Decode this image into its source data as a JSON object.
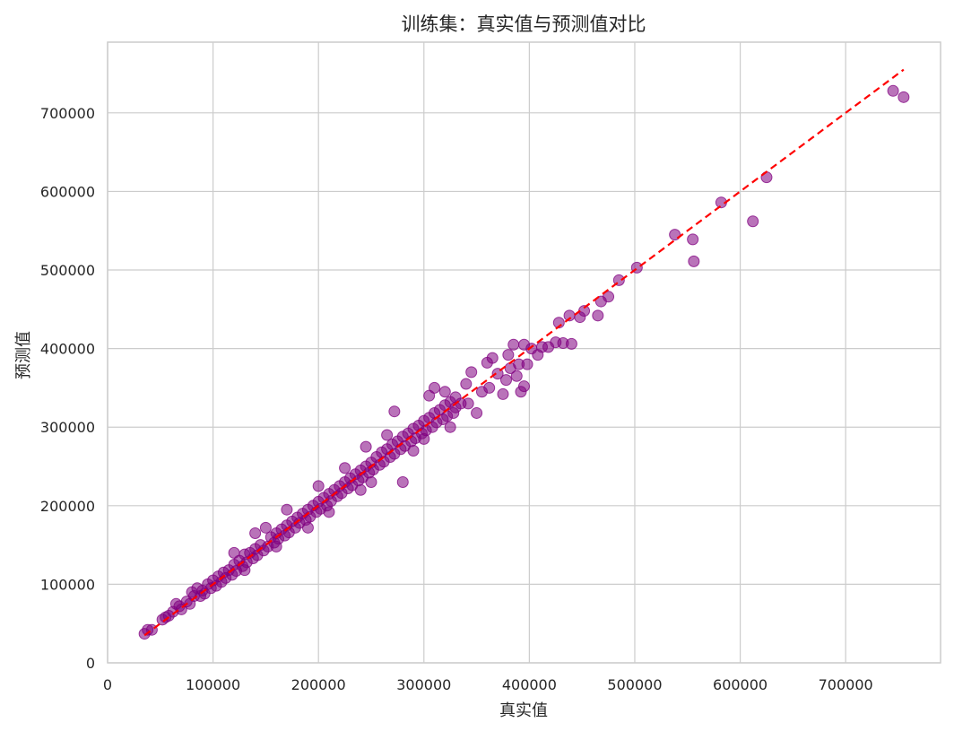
{
  "chart_data": {
    "type": "scatter",
    "title": "训练集：真实值与预测值对比",
    "xlabel": "真实值",
    "ylabel": "预测值",
    "xlim": [
      0,
      790000
    ],
    "ylim": [
      0,
      790000
    ],
    "xticks": [
      0,
      100000,
      200000,
      300000,
      400000,
      500000,
      600000,
      700000
    ],
    "yticks": [
      0,
      100000,
      200000,
      300000,
      400000,
      500000,
      600000,
      700000
    ],
    "grid": true,
    "colors": {
      "points": "#800080",
      "reference_line": "#ff0000",
      "grid": "#cccccc"
    },
    "reference_line": {
      "style": "dashed",
      "x": [
        35000,
        755000
      ],
      "y": [
        35000,
        755000
      ]
    },
    "series": [
      {
        "values": [
          [
            35000,
            37000
          ],
          [
            38000,
            42000
          ],
          [
            42000,
            42000
          ],
          [
            52000,
            55000
          ],
          [
            55000,
            58000
          ],
          [
            58000,
            60000
          ],
          [
            62000,
            65000
          ],
          [
            65000,
            75000
          ],
          [
            68000,
            72000
          ],
          [
            70000,
            68000
          ],
          [
            75000,
            78000
          ],
          [
            78000,
            75000
          ],
          [
            80000,
            90000
          ],
          [
            82000,
            85000
          ],
          [
            85000,
            95000
          ],
          [
            88000,
            85000
          ],
          [
            90000,
            92000
          ],
          [
            92000,
            88000
          ],
          [
            95000,
            100000
          ],
          [
            98000,
            95000
          ],
          [
            100000,
            105000
          ],
          [
            103000,
            98000
          ],
          [
            105000,
            110000
          ],
          [
            108000,
            103000
          ],
          [
            110000,
            115000
          ],
          [
            112000,
            108000
          ],
          [
            115000,
            118000
          ],
          [
            118000,
            112000
          ],
          [
            120000,
            125000
          ],
          [
            122000,
            117000
          ],
          [
            125000,
            130000
          ],
          [
            128000,
            123000
          ],
          [
            130000,
            138000
          ],
          [
            132000,
            128000
          ],
          [
            135000,
            140000
          ],
          [
            138000,
            133000
          ],
          [
            140000,
            145000
          ],
          [
            142000,
            137000
          ],
          [
            145000,
            150000
          ],
          [
            148000,
            143000
          ],
          [
            150000,
            172000
          ],
          [
            152000,
            148000
          ],
          [
            155000,
            160000
          ],
          [
            158000,
            153000
          ],
          [
            160000,
            165000
          ],
          [
            162000,
            158000
          ],
          [
            165000,
            170000
          ],
          [
            168000,
            162000
          ],
          [
            170000,
            175000
          ],
          [
            172000,
            166000
          ],
          [
            175000,
            180000
          ],
          [
            178000,
            172000
          ],
          [
            180000,
            185000
          ],
          [
            182000,
            178000
          ],
          [
            185000,
            190000
          ],
          [
            188000,
            182000
          ],
          [
            190000,
            195000
          ],
          [
            192000,
            186000
          ],
          [
            195000,
            200000
          ],
          [
            198000,
            192000
          ],
          [
            200000,
            205000
          ],
          [
            202000,
            196000
          ],
          [
            205000,
            210000
          ],
          [
            208000,
            200000
          ],
          [
            210000,
            215000
          ],
          [
            212000,
            206000
          ],
          [
            215000,
            220000
          ],
          [
            218000,
            212000
          ],
          [
            220000,
            225000
          ],
          [
            222000,
            216000
          ],
          [
            225000,
            230000
          ],
          [
            228000,
            222000
          ],
          [
            230000,
            235000
          ],
          [
            232000,
            226000
          ],
          [
            235000,
            240000
          ],
          [
            238000,
            232000
          ],
          [
            240000,
            245000
          ],
          [
            242000,
            236000
          ],
          [
            245000,
            250000
          ],
          [
            248000,
            242000
          ],
          [
            250000,
            255000
          ],
          [
            252000,
            246000
          ],
          [
            255000,
            262000
          ],
          [
            258000,
            252000
          ],
          [
            260000,
            268000
          ],
          [
            262000,
            256000
          ],
          [
            265000,
            272000
          ],
          [
            268000,
            262000
          ],
          [
            270000,
            278000
          ],
          [
            272000,
            266000
          ],
          [
            275000,
            282000
          ],
          [
            278000,
            272000
          ],
          [
            280000,
            288000
          ],
          [
            282000,
            276000
          ],
          [
            285000,
            292000
          ],
          [
            288000,
            282000
          ],
          [
            290000,
            298000
          ],
          [
            292000,
            286000
          ],
          [
            295000,
            302000
          ],
          [
            298000,
            292000
          ],
          [
            300000,
            308000
          ],
          [
            302000,
            296000
          ],
          [
            305000,
            312000
          ],
          [
            308000,
            300000
          ],
          [
            310000,
            318000
          ],
          [
            312000,
            306000
          ],
          [
            315000,
            322000
          ],
          [
            318000,
            310000
          ],
          [
            320000,
            328000
          ],
          [
            322000,
            314000
          ],
          [
            325000,
            332000
          ],
          [
            328000,
            318000
          ],
          [
            330000,
            338000
          ],
          [
            335000,
            330000
          ],
          [
            120000,
            140000
          ],
          [
            130000,
            118000
          ],
          [
            140000,
            165000
          ],
          [
            160000,
            148000
          ],
          [
            170000,
            195000
          ],
          [
            190000,
            172000
          ],
          [
            200000,
            225000
          ],
          [
            210000,
            192000
          ],
          [
            225000,
            248000
          ],
          [
            240000,
            220000
          ],
          [
            245000,
            275000
          ],
          [
            250000,
            230000
          ],
          [
            265000,
            290000
          ],
          [
            272000,
            320000
          ],
          [
            280000,
            230000
          ],
          [
            290000,
            270000
          ],
          [
            300000,
            285000
          ],
          [
            305000,
            340000
          ],
          [
            310000,
            350000
          ],
          [
            320000,
            345000
          ],
          [
            325000,
            300000
          ],
          [
            330000,
            325000
          ],
          [
            340000,
            355000
          ],
          [
            342000,
            330000
          ],
          [
            345000,
            370000
          ],
          [
            350000,
            318000
          ],
          [
            355000,
            345000
          ],
          [
            360000,
            382000
          ],
          [
            362000,
            350000
          ],
          [
            365000,
            388000
          ],
          [
            370000,
            368000
          ],
          [
            375000,
            342000
          ],
          [
            378000,
            360000
          ],
          [
            380000,
            392000
          ],
          [
            382000,
            375000
          ],
          [
            385000,
            405000
          ],
          [
            388000,
            365000
          ],
          [
            390000,
            380000
          ],
          [
            392000,
            345000
          ],
          [
            395000,
            352000
          ],
          [
            395000,
            405000
          ],
          [
            398000,
            380000
          ],
          [
            402000,
            400000
          ],
          [
            408000,
            392000
          ],
          [
            412000,
            402000
          ],
          [
            418000,
            402000
          ],
          [
            425000,
            408000
          ],
          [
            428000,
            433000
          ],
          [
            432000,
            407000
          ],
          [
            438000,
            442000
          ],
          [
            440000,
            406000
          ],
          [
            448000,
            440000
          ],
          [
            452000,
            448000
          ],
          [
            465000,
            442000
          ],
          [
            468000,
            460000
          ],
          [
            475000,
            466000
          ],
          [
            485000,
            487000
          ],
          [
            502000,
            503000
          ],
          [
            538000,
            545000
          ],
          [
            555000,
            539000
          ],
          [
            556000,
            511000
          ],
          [
            582000,
            586000
          ],
          [
            612000,
            562000
          ],
          [
            625000,
            618000
          ],
          [
            745000,
            728000
          ],
          [
            755000,
            720000
          ]
        ]
      }
    ]
  }
}
